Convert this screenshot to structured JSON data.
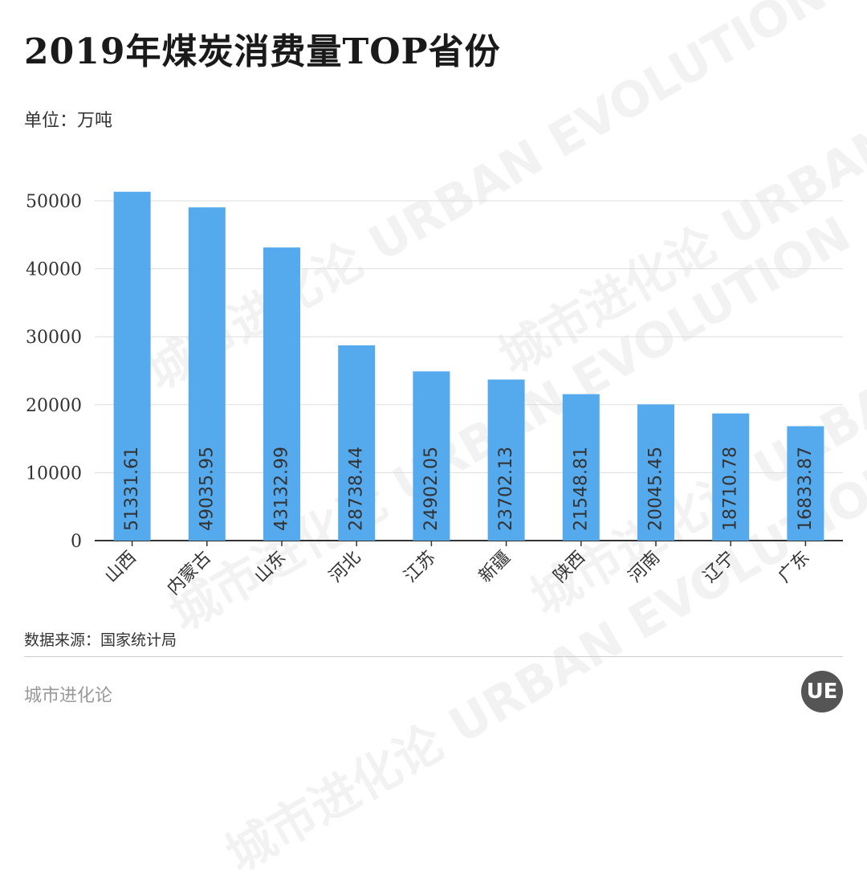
{
  "title": "2019年煤炭消费量TOP省份",
  "unit": "单位：万吨",
  "source": "数据来源：国家统计局",
  "footer": "城市进化论",
  "logo_text": "UE",
  "watermark": "城市进化论 URBAN EVOLUTION",
  "colors": {
    "bar": "#55aaee",
    "grid": "#dddddd",
    "axis": "#333333"
  },
  "chart_data": {
    "type": "bar",
    "title": "2019年煤炭消费量TOP省份",
    "xlabel": "",
    "ylabel": "单位：万吨",
    "categories": [
      "山西",
      "内蒙古",
      "山东",
      "河北",
      "江苏",
      "新疆",
      "陕西",
      "河南",
      "辽宁",
      "广东"
    ],
    "values": [
      51331.61,
      49035.95,
      43132.99,
      28738.44,
      24902.05,
      23702.13,
      21548.81,
      20045.45,
      18710.78,
      16833.87
    ],
    "value_labels": [
      "51331.61",
      "49035.95",
      "43132.99",
      "28738.44",
      "24902.05",
      "23702.13",
      "21548.81",
      "20045.45",
      "18710.78",
      "16833.87"
    ],
    "ylim": [
      0,
      50000
    ],
    "yticks": [
      "0",
      "10000",
      "20000",
      "30000",
      "40000",
      "50000"
    ],
    "grid": true,
    "legend": "none"
  }
}
